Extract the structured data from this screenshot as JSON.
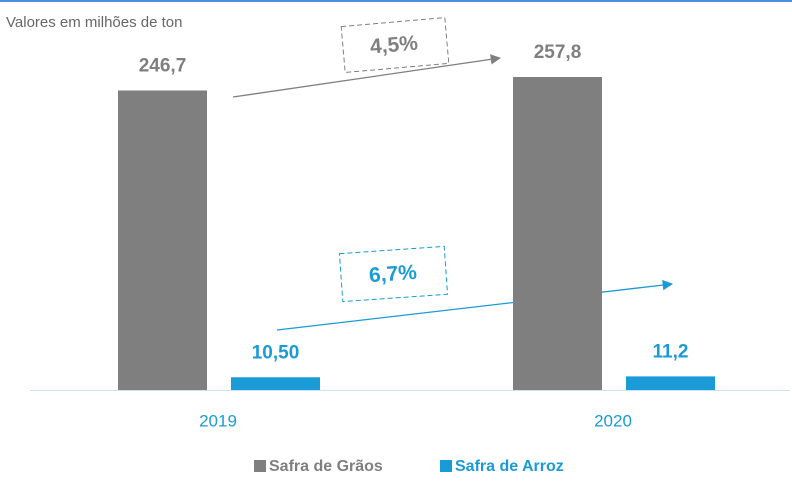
{
  "chart_data": {
    "type": "bar",
    "subtitle": "Valores em milhões de ton",
    "categories": [
      "2019",
      "2020"
    ],
    "series": [
      {
        "name": "Safra de Grãos",
        "color": "#7f7f7f",
        "values": [
          246.7,
          257.8
        ],
        "value_labels": [
          "246,7",
          "257,8"
        ]
      },
      {
        "name": "Safra de Arroz",
        "color": "#1a9ad6",
        "values": [
          10.5,
          11.2
        ],
        "value_labels": [
          "10,50",
          "11,2"
        ]
      }
    ],
    "annotations": [
      "4,5%",
      "6,7%"
    ]
  }
}
